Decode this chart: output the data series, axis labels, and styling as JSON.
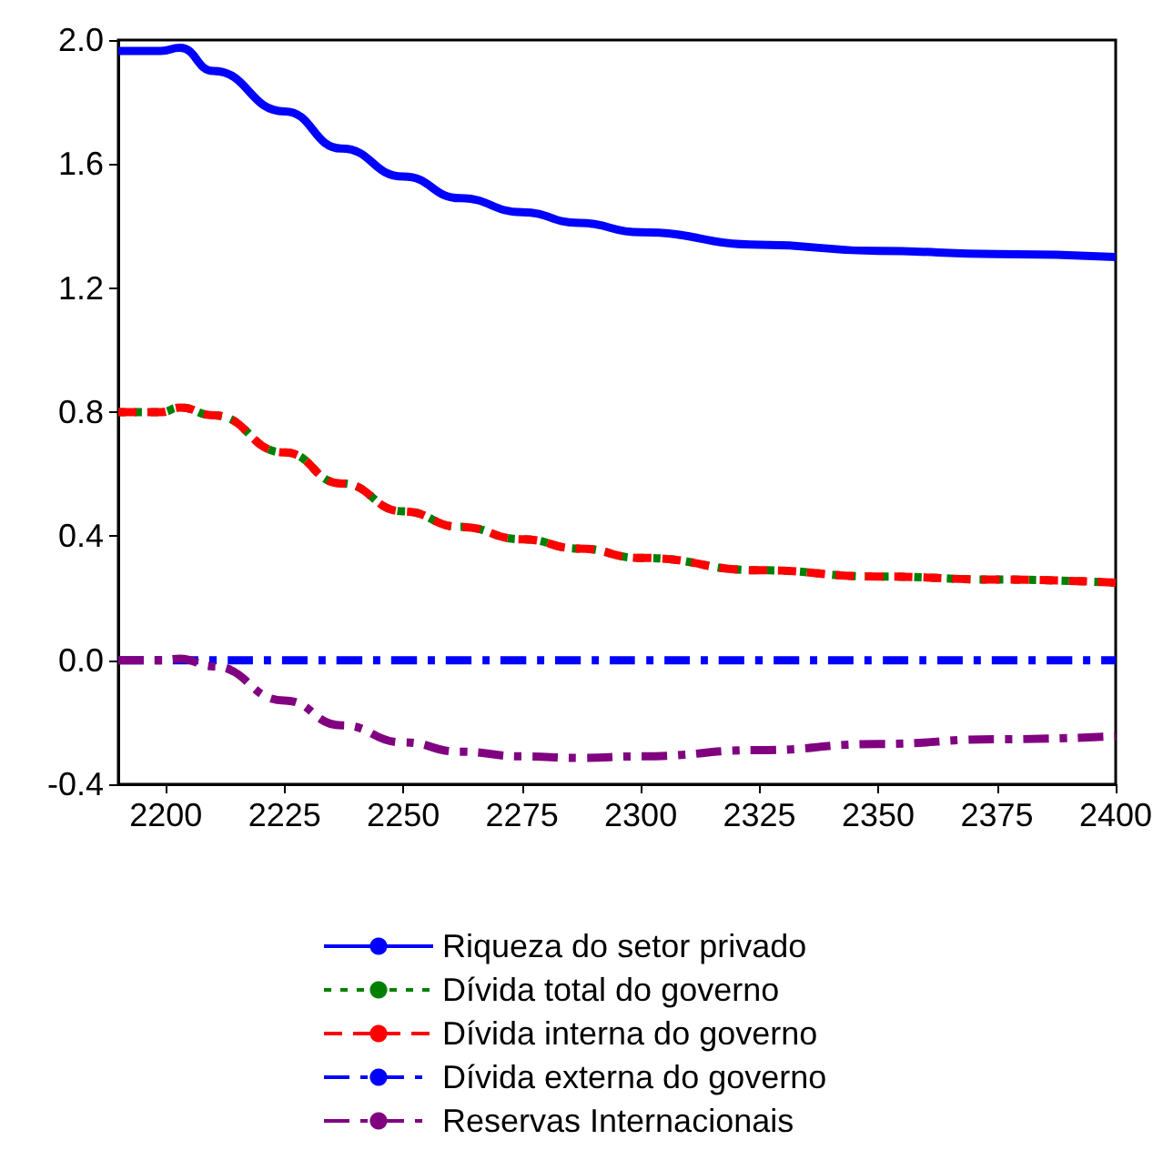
{
  "chart_data": {
    "type": "line",
    "x": [
      2190,
      2199,
      2203,
      2210,
      2225,
      2237,
      2250,
      2262,
      2275,
      2287,
      2300,
      2325,
      2350,
      2375,
      2400
    ],
    "series": [
      {
        "name": "Riqueza do setor privado",
        "color": "#0000ff",
        "line_style": "solid",
        "values": [
          1.965,
          1.965,
          1.975,
          1.9,
          1.77,
          1.65,
          1.56,
          1.49,
          1.445,
          1.41,
          1.38,
          1.34,
          1.32,
          1.31,
          1.3
        ]
      },
      {
        "name": "Dívida total do governo",
        "color": "#008000",
        "line_style": "dotted",
        "values": [
          0.8,
          0.8,
          0.815,
          0.79,
          0.67,
          0.57,
          0.48,
          0.43,
          0.39,
          0.36,
          0.33,
          0.29,
          0.27,
          0.26,
          0.25
        ]
      },
      {
        "name": "Dívida interna do governo",
        "color": "#ff0000",
        "line_style": "dashed",
        "values": [
          0.8,
          0.8,
          0.815,
          0.79,
          0.67,
          0.57,
          0.48,
          0.43,
          0.39,
          0.36,
          0.33,
          0.29,
          0.27,
          0.26,
          0.25
        ]
      },
      {
        "name": "Dívida externa do governo",
        "color": "#0000ff",
        "line_style": "dashdot",
        "values": [
          0,
          0,
          0,
          0,
          0,
          0,
          0,
          0,
          0,
          0,
          0,
          0,
          0,
          0,
          0
        ]
      },
      {
        "name": "Reservas Internacionais",
        "color": "#800080",
        "line_style": "dashdot",
        "values": [
          0,
          0,
          0.005,
          -0.02,
          -0.13,
          -0.21,
          -0.265,
          -0.295,
          -0.31,
          -0.315,
          -0.31,
          -0.29,
          -0.27,
          -0.255,
          -0.245
        ]
      }
    ],
    "xlim": [
      2190,
      2400
    ],
    "xticks": [
      2200,
      2225,
      2250,
      2275,
      2300,
      2325,
      2350,
      2375,
      2400
    ],
    "ylim": [
      -0.4,
      2.0
    ],
    "yticks": [
      {
        "value": -0.4,
        "label": "-0.4"
      },
      {
        "value": 0,
        "label": "0.0"
      },
      {
        "value": 0.4,
        "label": "0.4"
      },
      {
        "value": 0.8,
        "label": "0.8"
      },
      {
        "value": 1.2,
        "label": "1.2"
      },
      {
        "value": 1.6,
        "label": "1.6"
      },
      {
        "value": 2,
        "label": "2.0"
      }
    ],
    "grid": false,
    "legend": "bottom",
    "marker": "none"
  }
}
